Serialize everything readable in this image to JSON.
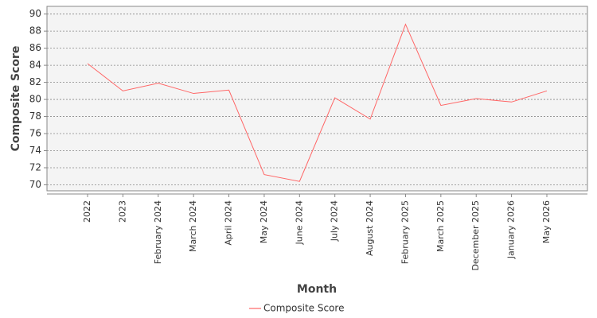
{
  "chart_data": {
    "type": "line",
    "x_label": "Month",
    "y_label": "Composite Score",
    "categories": [
      "2022",
      "2023",
      "February 2024",
      "March 2024",
      "April 2024",
      "May 2024",
      "June 2024",
      "July 2024",
      "August 2024",
      "February 2025",
      "March 2025",
      "December 2025",
      "January 2026",
      "May 2026"
    ],
    "series": [
      {
        "name": "Composite Score",
        "color": "#ff6666",
        "values": [
          84.2,
          81.0,
          81.9,
          80.7,
          81.1,
          71.2,
          70.4,
          80.2,
          77.7,
          88.8,
          79.3,
          80.1,
          79.7,
          81.0
        ]
      }
    ],
    "ylim": [
      69.3,
      90.9
    ],
    "yticks": [
      70,
      72,
      74,
      76,
      78,
      80,
      82,
      84,
      86,
      88,
      90
    ],
    "grid": true,
    "legend": "bottom"
  }
}
